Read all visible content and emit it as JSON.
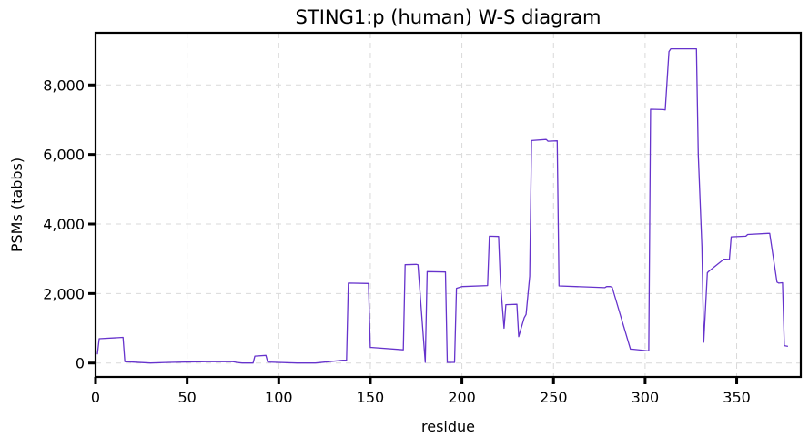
{
  "chart_data": {
    "type": "line",
    "title": "STING1:p (human) W-S diagram",
    "xlabel": "residue",
    "ylabel": "PSMs (tabbs)",
    "xlim": [
      0,
      385
    ],
    "ylim": [
      -400,
      9500
    ],
    "xticks": [
      0,
      50,
      100,
      150,
      200,
      250,
      300,
      350
    ],
    "xtick_labels": [
      "0",
      "50",
      "100",
      "150",
      "200",
      "250",
      "300",
      "350"
    ],
    "yticks": [
      0,
      2000,
      4000,
      6000,
      8000
    ],
    "ytick_labels": [
      "0",
      "2,000",
      "4,000",
      "6,000",
      "8,000"
    ],
    "grid": true,
    "colors": {
      "line": "#6633cc"
    },
    "series": [
      {
        "x": [
          1,
          2,
          15,
          16,
          30,
          40,
          60,
          75,
          77,
          80,
          86,
          87,
          93,
          94,
          110,
          120,
          135,
          137,
          138,
          149,
          150,
          168,
          169,
          175,
          176,
          180,
          181,
          191,
          192,
          196,
          197,
          200,
          214,
          215,
          220,
          221,
          223,
          224,
          230,
          231,
          234,
          235,
          237,
          238,
          246,
          247,
          252,
          253,
          278,
          279,
          281,
          282,
          292,
          293,
          302,
          303,
          310,
          311,
          313,
          314,
          328,
          329,
          331,
          332,
          334,
          335,
          343,
          344,
          346,
          347,
          355,
          356,
          367,
          368,
          372,
          373,
          375,
          376,
          378
        ],
        "y": [
          250,
          700,
          740,
          40,
          0,
          20,
          40,
          40,
          20,
          0,
          0,
          200,
          220,
          30,
          0,
          0,
          80,
          80,
          2300,
          2290,
          450,
          380,
          2830,
          2840,
          2830,
          20,
          2630,
          2620,
          20,
          20,
          2150,
          2200,
          2230,
          3650,
          3640,
          2330,
          1000,
          1680,
          1690,
          760,
          1300,
          1400,
          2500,
          6400,
          6430,
          6380,
          6390,
          2220,
          2170,
          2200,
          2200,
          2180,
          400,
          400,
          350,
          7300,
          7290,
          7280,
          8960,
          9040,
          9040,
          6000,
          3350,
          600,
          2600,
          2650,
          2990,
          2990,
          2980,
          3630,
          3650,
          3700,
          3730,
          3730,
          2330,
          2300,
          2310,
          500,
          480
        ]
      }
    ]
  }
}
